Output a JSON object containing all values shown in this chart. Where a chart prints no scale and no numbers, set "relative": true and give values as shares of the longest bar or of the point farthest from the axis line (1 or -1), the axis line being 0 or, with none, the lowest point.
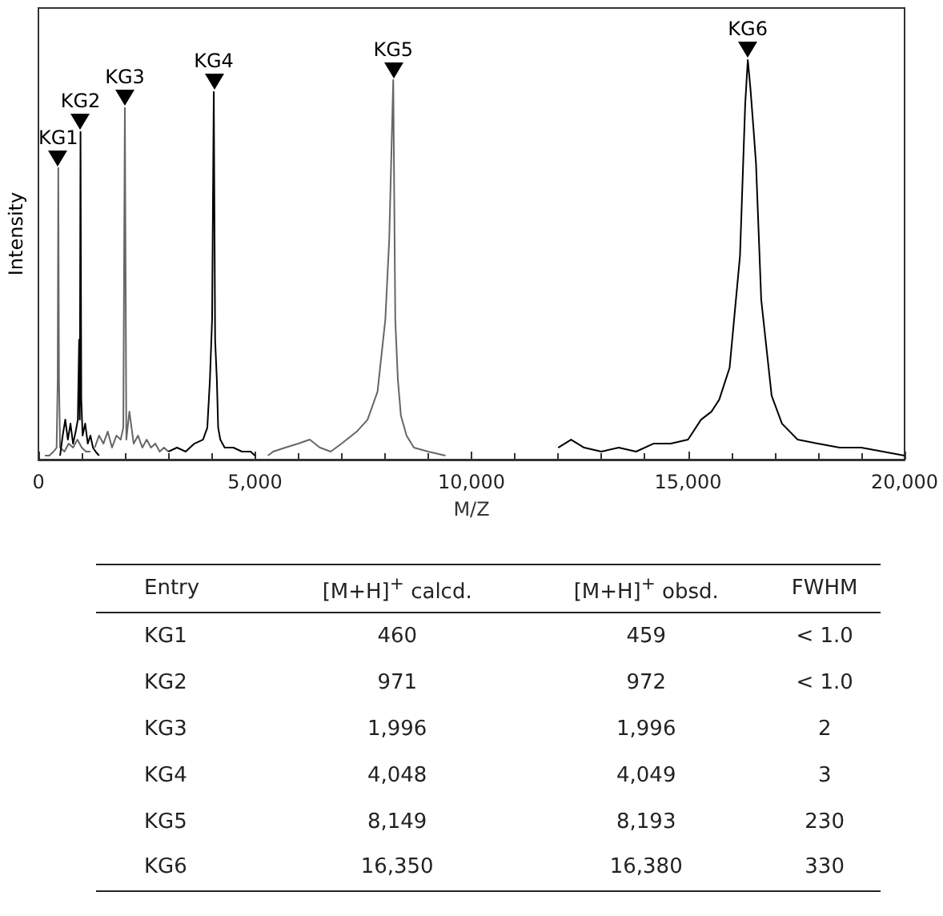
{
  "chart_data": {
    "type": "line",
    "relative": true,
    "xlabel": "M/Z",
    "ylabel": "Intensity",
    "xlim": [
      0,
      20000
    ],
    "xticks": [
      {
        "value": 0,
        "label": "0"
      },
      {
        "value": 5000,
        "label": "5,000"
      },
      {
        "value": 10000,
        "label": "10,000"
      },
      {
        "value": 15000,
        "label": "15,000"
      },
      {
        "value": 20000,
        "label": "20,000"
      }
    ],
    "series": [
      {
        "color": "#666666",
        "x": [
          150,
          250,
          350,
          420,
          445,
          459,
          475,
          500,
          600,
          700,
          800,
          900,
          1000,
          1100,
          1200
        ],
        "values": [
          0.01,
          0.01,
          0.02,
          0.03,
          0.2,
          0.73,
          0.2,
          0.03,
          0.02,
          0.04,
          0.03,
          0.05,
          0.03,
          0.02,
          0.02
        ]
      },
      {
        "color": "#000000",
        "x": [
          500,
          560,
          620,
          680,
          740,
          800,
          860,
          910,
          940,
          955,
          972,
          990,
          1020,
          1080,
          1140,
          1200,
          1260,
          1320,
          1400
        ],
        "values": [
          0.01,
          0.06,
          0.1,
          0.05,
          0.09,
          0.04,
          0.07,
          0.1,
          0.3,
          0.1,
          0.82,
          0.15,
          0.06,
          0.09,
          0.04,
          0.06,
          0.03,
          0.02,
          0.01
        ]
      },
      {
        "color": "#666666",
        "x": [
          1300,
          1400,
          1500,
          1600,
          1700,
          1800,
          1900,
          1960,
          1996,
          2030,
          2100,
          2200,
          2300,
          2400,
          2500,
          2600,
          2700,
          2800,
          2900,
          3000
        ],
        "values": [
          0.03,
          0.06,
          0.04,
          0.07,
          0.03,
          0.06,
          0.05,
          0.08,
          0.88,
          0.05,
          0.12,
          0.04,
          0.06,
          0.03,
          0.05,
          0.03,
          0.04,
          0.02,
          0.03,
          0.02
        ]
      },
      {
        "color": "#000000",
        "x": [
          3000,
          3200,
          3400,
          3600,
          3800,
          3900,
          3960,
          4010,
          4049,
          4080,
          4120,
          4150,
          4200,
          4300,
          4500,
          4700,
          4900,
          5000
        ],
        "values": [
          0.02,
          0.03,
          0.02,
          0.04,
          0.05,
          0.08,
          0.2,
          0.35,
          0.92,
          0.3,
          0.2,
          0.08,
          0.05,
          0.03,
          0.03,
          0.02,
          0.02,
          0.01
        ]
      },
      {
        "color": "#666666",
        "x": [
          5300,
          5420,
          5700,
          6000,
          6265,
          6500,
          6750,
          7000,
          7350,
          7600,
          7830,
          8010,
          8100,
          8193,
          8240,
          8300,
          8370,
          8500,
          8670,
          9000,
          9400
        ],
        "values": [
          0.01,
          0.02,
          0.03,
          0.04,
          0.05,
          0.03,
          0.02,
          0.04,
          0.07,
          0.1,
          0.17,
          0.35,
          0.55,
          0.95,
          0.35,
          0.2,
          0.11,
          0.06,
          0.03,
          0.02,
          0.01
        ]
      },
      {
        "color": "#000000",
        "x": [
          12000,
          12300,
          12600,
          13000,
          13400,
          13800,
          14200,
          14600,
          15000,
          15300,
          15540,
          15720,
          15960,
          16200,
          16320,
          16380,
          16440,
          16510,
          16570,
          16690,
          16930,
          17170,
          17530,
          18000,
          18500,
          19000,
          19500,
          20000
        ],
        "values": [
          0.03,
          0.05,
          0.03,
          0.02,
          0.03,
          0.02,
          0.04,
          0.04,
          0.05,
          0.1,
          0.12,
          0.15,
          0.23,
          0.51,
          0.89,
          1,
          0.93,
          0.83,
          0.74,
          0.4,
          0.16,
          0.09,
          0.05,
          0.04,
          0.03,
          0.03,
          0.02,
          0.01
        ]
      }
    ],
    "annotations": [
      {
        "text": "KG1",
        "x": 459,
        "y": 0.73
      },
      {
        "text": "KG2",
        "x": 972,
        "y": 0.82
      },
      {
        "text": "KG3",
        "x": 1996,
        "y": 0.88
      },
      {
        "text": "KG4",
        "x": 4049,
        "y": 0.92
      },
      {
        "text": "KG5",
        "x": 8193,
        "y": 0.95
      },
      {
        "text": "KG6",
        "x": 16380,
        "y": 1
      },
      "Entry",
      "[M+H]$^{+}$ calcd.",
      "[M+H]$^{+}$ obsd.",
      "FWHM",
      "KG1",
      "460",
      "459",
      "< 1.0",
      "KG2",
      "971",
      "972",
      "< 1.0",
      "KG3",
      "1,996",
      "1,996",
      "2",
      "KG4",
      "4,048",
      "4,049",
      "3",
      "KG5",
      "8,149",
      "8,193",
      "230",
      "KG6",
      "16,350",
      "16,380",
      "330"
    ]
  }
}
